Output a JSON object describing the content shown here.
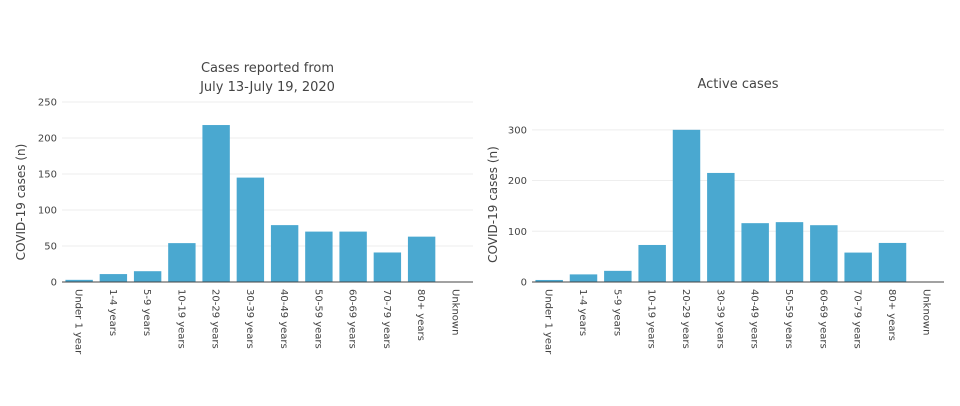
{
  "bar_color": "#4aa8d0",
  "chart_data": [
    {
      "type": "bar",
      "title": [
        "Cases reported from",
        "July 13-July 19, 2020"
      ],
      "ylabel": "COVID-19 cases (n)",
      "xlabel": "",
      "categories": [
        "Under 1 year",
        "1-4 years",
        "5-9 years",
        "10-19 years",
        "20-29 years",
        "30-39 years",
        "40-49 years",
        "50-59 years",
        "60-69 years",
        "70-79 years",
        "80+ years",
        "Unknown"
      ],
      "values": [
        3,
        11,
        15,
        54,
        218,
        145,
        79,
        70,
        70,
        41,
        63,
        0
      ],
      "ylim": [
        0,
        250
      ],
      "yticks": [
        0,
        50,
        100,
        150,
        200,
        250
      ],
      "grid": true,
      "legend": "none"
    },
    {
      "type": "bar",
      "title": [
        "Active cases"
      ],
      "ylabel": "COVID-19 cases (n)",
      "xlabel": "",
      "categories": [
        "Under 1 year",
        "1-4 years",
        "5-9 years",
        "10-19 years",
        "20-29 years",
        "30-39 years",
        "40-49 years",
        "50-59 years",
        "60-69 years",
        "70-79 years",
        "80+ years",
        "Unknown"
      ],
      "values": [
        4,
        15,
        22,
        73,
        300,
        215,
        116,
        118,
        112,
        58,
        77,
        0
      ],
      "ylim": [
        0,
        345
      ],
      "yticks": [
        0,
        100,
        200,
        300
      ],
      "grid": true,
      "legend": "none"
    }
  ]
}
